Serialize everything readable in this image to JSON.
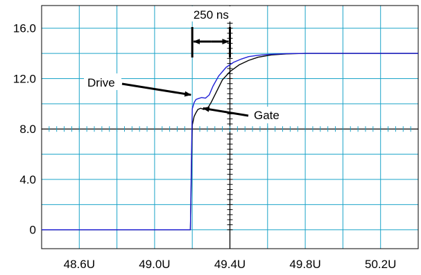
{
  "chart_data": {
    "type": "line",
    "title": "",
    "xlabel": "",
    "ylabel": "",
    "xlim": [
      48.4,
      50.4
    ],
    "ylim": [
      -1.5,
      17.8
    ],
    "grid": true,
    "x_ticks": [
      {
        "value": 48.6,
        "label": "48.6U"
      },
      {
        "value": 49.0,
        "label": "49.0U"
      },
      {
        "value": 49.4,
        "label": "49.4U"
      },
      {
        "value": 49.8,
        "label": "49.8U"
      },
      {
        "value": 50.2,
        "label": "50.2U"
      }
    ],
    "y_ticks": [
      {
        "value": 16,
        "label": "16.0"
      },
      {
        "value": 12,
        "label": "12.0"
      },
      {
        "value": 8,
        "label": "8.0"
      },
      {
        "value": 4,
        "label": "4.0"
      },
      {
        "value": 0,
        "label": "0"
      }
    ],
    "series": [
      {
        "name": "Drive",
        "color": "#1f1fd6",
        "points": [
          [
            48.4,
            0
          ],
          [
            49.19,
            0
          ],
          [
            49.195,
            5
          ],
          [
            49.2,
            9.6
          ],
          [
            49.21,
            10.1
          ],
          [
            49.22,
            10.35
          ],
          [
            49.23,
            10.4
          ],
          [
            49.25,
            10.5
          ],
          [
            49.27,
            10.45
          ],
          [
            49.29,
            10.7
          ],
          [
            49.31,
            11.4
          ],
          [
            49.34,
            12.2
          ],
          [
            49.38,
            12.9
          ],
          [
            49.42,
            13.3
          ],
          [
            49.46,
            13.55
          ],
          [
            49.5,
            13.75
          ],
          [
            49.55,
            13.85
          ],
          [
            49.6,
            13.92
          ],
          [
            49.7,
            13.98
          ],
          [
            49.8,
            14.0
          ],
          [
            50.4,
            14.0
          ]
        ]
      },
      {
        "name": "Gate",
        "color": "#000000",
        "points": [
          [
            48.4,
            0
          ],
          [
            49.19,
            0
          ],
          [
            49.195,
            4
          ],
          [
            49.2,
            8.3
          ],
          [
            49.21,
            9.0
          ],
          [
            49.22,
            9.3
          ],
          [
            49.23,
            9.55
          ],
          [
            49.245,
            9.65
          ],
          [
            49.26,
            9.55
          ],
          [
            49.28,
            9.6
          ],
          [
            49.3,
            10.1
          ],
          [
            49.33,
            11.0
          ],
          [
            49.36,
            11.9
          ],
          [
            49.4,
            12.55
          ],
          [
            49.45,
            13.1
          ],
          [
            49.5,
            13.45
          ],
          [
            49.55,
            13.7
          ],
          [
            49.62,
            13.88
          ],
          [
            49.7,
            13.96
          ],
          [
            49.8,
            14.0
          ],
          [
            50.4,
            14.0
          ]
        ]
      }
    ],
    "annotations": [
      {
        "text": "250 ns",
        "x_start": 49.2,
        "x_end": 49.4
      },
      {
        "text": "Drive",
        "points_to": [
          49.2,
          10.6
        ]
      },
      {
        "text": "Gate",
        "points_to": [
          49.25,
          9.7
        ]
      }
    ]
  }
}
